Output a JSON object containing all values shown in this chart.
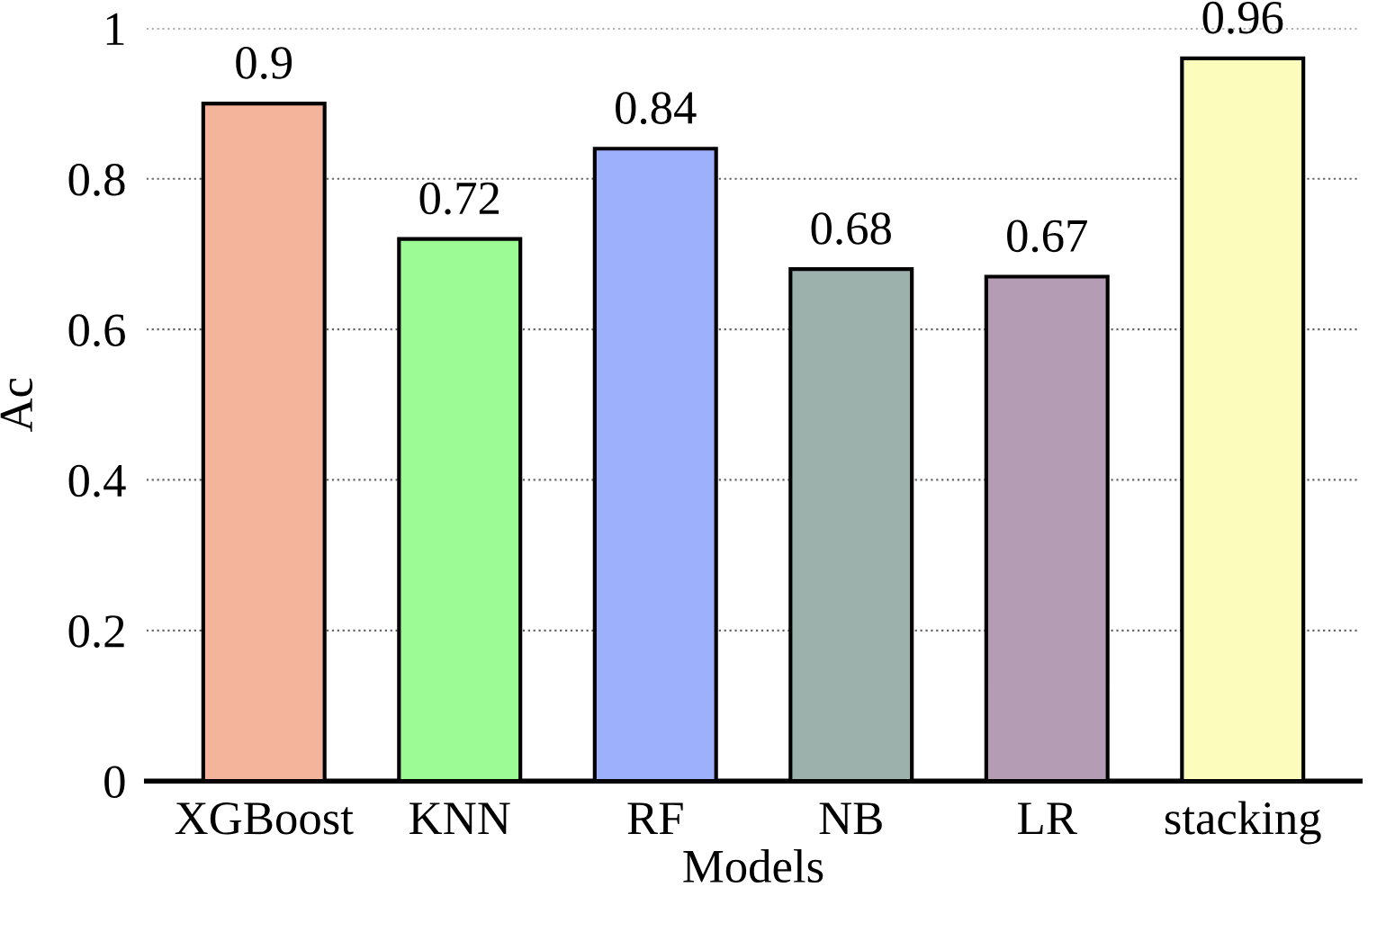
{
  "chart_data": {
    "type": "bar",
    "xlabel": "Models",
    "ylabel": "Ac",
    "categories": [
      "XGBoost",
      "KNN",
      "RF",
      "NB",
      "LR",
      "stacking"
    ],
    "values": [
      0.9,
      0.72,
      0.84,
      0.68,
      0.67,
      0.96
    ],
    "data_labels": true,
    "colors": [
      "#f4b49c",
      "#9cfb94",
      "#9cb0fb",
      "#9cb0ac",
      "#b49cb4",
      "#fcfcbc"
    ],
    "ylim": [
      0,
      1
    ],
    "yticks": [
      0,
      0.2,
      0.4,
      0.6,
      0.8,
      1
    ],
    "grid": "y",
    "legend": false
  }
}
